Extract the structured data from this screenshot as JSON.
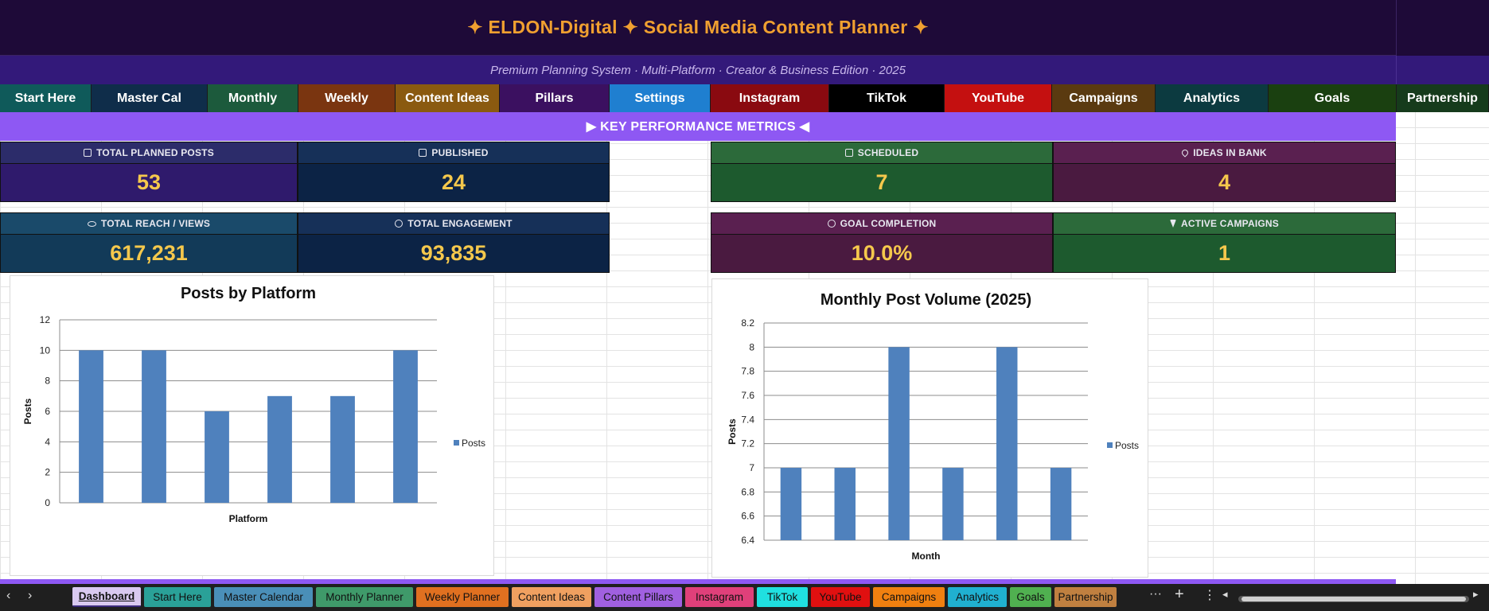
{
  "header": {
    "title": "✦  ELDON-Digital  ✦  Social Media Content Planner  ✦",
    "subtitle": "Premium Planning System  ·  Multi-Platform  ·  Creator & Business Edition  ·  2025"
  },
  "nav": {
    "tabs": [
      {
        "label": "Start Here",
        "color": "#0f5a5a"
      },
      {
        "label": "Master Cal",
        "color": "#0f2d4a"
      },
      {
        "label": "Monthly",
        "color": "#1c5a3c"
      },
      {
        "label": "Weekly",
        "color": "#7a3510"
      },
      {
        "label": "Content Ideas",
        "color": "#8a5a10"
      },
      {
        "label": "Pillars",
        "color": "#3b1060"
      },
      {
        "label": "Settings",
        "color": "#1f7fd0"
      },
      {
        "label": "Instagram",
        "color": "#8a0a10"
      },
      {
        "label": "TikTok",
        "color": "#000000"
      },
      {
        "label": "YouTube",
        "color": "#c41010"
      },
      {
        "label": "Campaigns",
        "color": "#5a3a10"
      },
      {
        "label": "Analytics",
        "color": "#0c3a40"
      },
      {
        "label": "Goals",
        "color": "#1a4010"
      },
      {
        "label": "Partnership",
        "color": "#163b1c"
      }
    ]
  },
  "kpi": {
    "banner": "▶  KEY PERFORMANCE METRICS  ◀",
    "cards": [
      {
        "label": "TOTAL PLANNED POSTS",
        "value": "53",
        "icon": "clipboard-icon"
      },
      {
        "label": "PUBLISHED",
        "value": "24",
        "icon": "check-icon"
      },
      {
        "label": "SCHEDULED",
        "value": "7",
        "icon": "calendar-icon"
      },
      {
        "label": "IDEAS IN BANK",
        "value": "4",
        "icon": "pin-icon"
      },
      {
        "label": "TOTAL REACH / VIEWS",
        "value": "617,231",
        "icon": "eye-icon"
      },
      {
        "label": "TOTAL ENGAGEMENT",
        "value": "93,835",
        "icon": "chat-icon"
      },
      {
        "label": "GOAL COMPLETION",
        "value": "10.0%",
        "icon": "target-icon"
      },
      {
        "label": "ACTIVE CAMPAIGNS",
        "value": "1",
        "icon": "bolt-icon"
      }
    ]
  },
  "chart_data": [
    {
      "type": "bar",
      "title": "Posts by Platform",
      "xlabel": "Platform",
      "ylabel": "Posts",
      "categories": [
        "",
        "",
        "",
        "",
        "",
        ""
      ],
      "series": [
        {
          "name": "Posts",
          "values": [
            10,
            10,
            6,
            7,
            7,
            10
          ]
        }
      ],
      "ylim": [
        0,
        12
      ],
      "yticks": [
        0,
        2,
        4,
        6,
        8,
        10,
        12
      ],
      "grid": true,
      "legend": "right",
      "color": "#4f81bd"
    },
    {
      "type": "bar",
      "title": "Monthly Post Volume (2025)",
      "xlabel": "Month",
      "ylabel": "Posts",
      "categories": [
        "",
        "",
        "",
        "",
        "",
        ""
      ],
      "series": [
        {
          "name": "Posts",
          "values": [
            7,
            7,
            8,
            7,
            8,
            7
          ]
        }
      ],
      "ylim": [
        6.4,
        8.2
      ],
      "yticks": [
        6.4,
        6.6,
        6.8,
        7,
        7.2,
        7.4,
        7.6,
        7.8,
        8,
        8.2
      ],
      "grid": true,
      "legend": "right",
      "color": "#4f81bd"
    }
  ],
  "sheets": {
    "tabs": [
      {
        "label": "Dashboard",
        "color": "#d9c9f0",
        "active": true
      },
      {
        "label": "Start Here",
        "color": "#2aa198"
      },
      {
        "label": "Master Calendar",
        "color": "#4a8fb8"
      },
      {
        "label": "Monthly Planner",
        "color": "#3f9a6a"
      },
      {
        "label": "Weekly Planner",
        "color": "#e07020"
      },
      {
        "label": "Content Ideas",
        "color": "#f0a060"
      },
      {
        "label": "Content Pillars",
        "color": "#a060e0"
      },
      {
        "label": "Instagram",
        "color": "#e0407a"
      },
      {
        "label": "TikTok",
        "color": "#20e0e0"
      },
      {
        "label": "YouTube",
        "color": "#e01010"
      },
      {
        "label": "Campaigns",
        "color": "#f08010"
      },
      {
        "label": "Analytics",
        "color": "#20b0d0"
      },
      {
        "label": "Goals",
        "color": "#50b050"
      },
      {
        "label": "Partnership",
        "color": "#c08040"
      }
    ],
    "prev": "‹",
    "next": "›",
    "more": "···",
    "add": "+",
    "options": "⋮",
    "scroll_left": "◂",
    "scroll_right": "▸"
  }
}
